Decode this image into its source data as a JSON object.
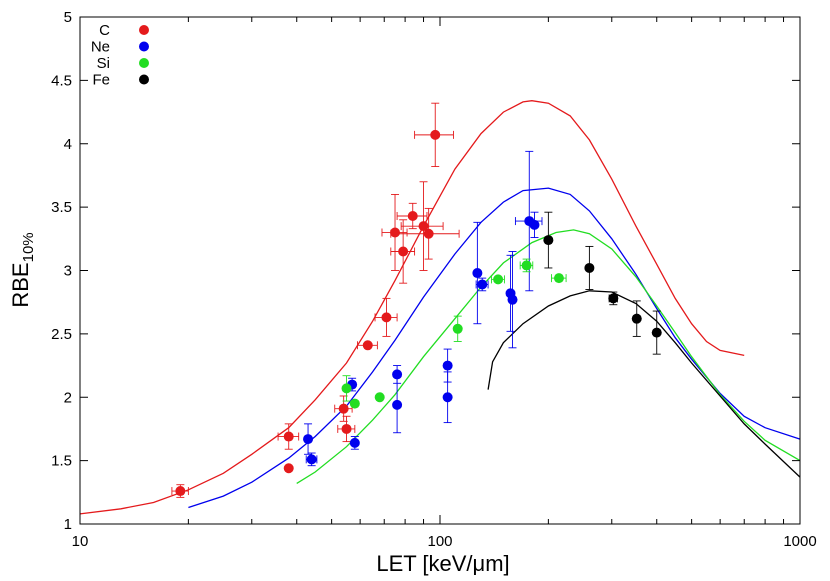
{
  "chart_data": {
    "type": "scatter",
    "title": "",
    "xlabel": "LET [keV/μm]",
    "ylabel_main": "RBE",
    "ylabel_sub": "10%",
    "x_scale": "log",
    "xlim": [
      10,
      1000
    ],
    "ylim": [
      1,
      5
    ],
    "x_ticks": [
      {
        "value": 10,
        "label": "10"
      },
      {
        "value": 100,
        "label": "100"
      },
      {
        "value": 1000,
        "label": "1000"
      }
    ],
    "y_ticks": [
      {
        "value": 1,
        "label": "1"
      },
      {
        "value": 1.5,
        "label": "1.5"
      },
      {
        "value": 2,
        "label": "2"
      },
      {
        "value": 2.5,
        "label": "2.5"
      },
      {
        "value": 3,
        "label": "3"
      },
      {
        "value": 3.5,
        "label": "3.5"
      },
      {
        "value": 4,
        "label": "4"
      },
      {
        "value": 4.5,
        "label": "4.5"
      },
      {
        "value": 5,
        "label": "5"
      }
    ],
    "grid": false,
    "legend_position": "top-left",
    "series": [
      {
        "name": "C",
        "color": "#e41a1c",
        "points": [
          {
            "x": 19,
            "y": 1.26,
            "xerr": 1.0,
            "yerr": 0.05
          },
          {
            "x": 38,
            "y": 1.69,
            "xerr": 2.5,
            "yerr": 0.1
          },
          {
            "x": 38,
            "y": 1.44,
            "xerr": 0,
            "yerr": 0
          },
          {
            "x": 54,
            "y": 1.91,
            "xerr": 3,
            "yerr": 0.1
          },
          {
            "x": 55,
            "y": 1.75,
            "xerr": 3,
            "yerr": 0.1
          },
          {
            "x": 63,
            "y": 2.41,
            "xerr": 4,
            "yerr": 0
          },
          {
            "x": 71,
            "y": 2.63,
            "xerr": 5,
            "yerr": 0.15
          },
          {
            "x": 75,
            "y": 3.3,
            "xerr": 6,
            "yerr": 0.3
          },
          {
            "x": 79,
            "y": 3.15,
            "xerr": 6,
            "yerr": 0.25
          },
          {
            "x": 84,
            "y": 3.43,
            "xerr": 8,
            "yerr": 0.1
          },
          {
            "x": 90,
            "y": 3.35,
            "xerr": 12,
            "yerr": 0.35
          },
          {
            "x": 93,
            "y": 3.29,
            "xerr": 20,
            "yerr": 0.2
          },
          {
            "x": 97,
            "y": 4.07,
            "xerr": 12,
            "yerr": 0.25
          }
        ]
      },
      {
        "name": "Ne",
        "color": "#0000ee",
        "points": [
          {
            "x": 43,
            "y": 1.67,
            "xerr": 0,
            "yerr": 0.12
          },
          {
            "x": 44,
            "y": 1.51,
            "xerr": 1.5,
            "yerr": 0.05
          },
          {
            "x": 57,
            "y": 2.1,
            "xerr": 0,
            "yerr": 0.05
          },
          {
            "x": 58,
            "y": 1.64,
            "xerr": 0,
            "yerr": 0.05
          },
          {
            "x": 76,
            "y": 2.18,
            "xerr": 0,
            "yerr": 0.07
          },
          {
            "x": 76,
            "y": 1.94,
            "xerr": 0,
            "yerr": 0.22
          },
          {
            "x": 105,
            "y": 2.25,
            "xerr": 0,
            "yerr": 0.13
          },
          {
            "x": 105,
            "y": 2.0,
            "xerr": 0,
            "yerr": 0.2
          },
          {
            "x": 127,
            "y": 2.98,
            "xerr": 0,
            "yerr": 0.4
          },
          {
            "x": 131,
            "y": 2.89,
            "xerr": 5,
            "yerr": 0.05
          },
          {
            "x": 157,
            "y": 2.82,
            "xerr": 0,
            "yerr": 0.3
          },
          {
            "x": 159,
            "y": 2.77,
            "xerr": 0,
            "yerr": 0.38
          },
          {
            "x": 177,
            "y": 3.39,
            "xerr": 15,
            "yerr": 0.55
          },
          {
            "x": 183,
            "y": 3.36,
            "xerr": 0,
            "yerr": 0.1
          }
        ]
      },
      {
        "name": "Si",
        "color": "#22dd22",
        "points": [
          {
            "x": 55,
            "y": 2.07,
            "xerr": 0,
            "yerr": 0.1
          },
          {
            "x": 58,
            "y": 1.95,
            "xerr": 0,
            "yerr": 0
          },
          {
            "x": 68,
            "y": 2.0,
            "xerr": 0,
            "yerr": 0
          },
          {
            "x": 112,
            "y": 2.54,
            "xerr": 0,
            "yerr": 0.1
          },
          {
            "x": 145,
            "y": 2.93,
            "xerr": 6,
            "yerr": 0
          },
          {
            "x": 174,
            "y": 3.04,
            "xerr": 7,
            "yerr": 0.05
          },
          {
            "x": 214,
            "y": 2.94,
            "xerr": 10,
            "yerr": 0
          }
        ]
      },
      {
        "name": "Fe",
        "color": "#000000",
        "points": [
          {
            "x": 200,
            "y": 3.24,
            "xerr": 0,
            "yerr": 0.22
          },
          {
            "x": 260,
            "y": 3.02,
            "xerr": 0,
            "yerr": 0.17
          },
          {
            "x": 303,
            "y": 2.78,
            "xerr": 8,
            "yerr": 0.05
          },
          {
            "x": 352,
            "y": 2.62,
            "xerr": 0,
            "yerr": 0.14
          },
          {
            "x": 400,
            "y": 2.51,
            "xerr": 0,
            "yerr": 0.17
          }
        ]
      }
    ],
    "curves": [
      {
        "color": "#e41a1c",
        "points": [
          [
            10,
            1.08
          ],
          [
            13,
            1.12
          ],
          [
            16,
            1.17
          ],
          [
            20,
            1.27
          ],
          [
            25,
            1.4
          ],
          [
            30,
            1.55
          ],
          [
            38,
            1.76
          ],
          [
            45,
            1.98
          ],
          [
            55,
            2.27
          ],
          [
            65,
            2.6
          ],
          [
            75,
            2.92
          ],
          [
            90,
            3.35
          ],
          [
            110,
            3.8
          ],
          [
            130,
            4.08
          ],
          [
            150,
            4.25
          ],
          [
            170,
            4.33
          ],
          [
            180,
            4.34
          ],
          [
            200,
            4.32
          ],
          [
            230,
            4.22
          ],
          [
            260,
            4.03
          ],
          [
            300,
            3.72
          ],
          [
            350,
            3.35
          ],
          [
            400,
            3.05
          ],
          [
            450,
            2.78
          ],
          [
            500,
            2.58
          ],
          [
            550,
            2.44
          ],
          [
            600,
            2.37
          ],
          [
            700,
            2.33
          ]
        ]
      },
      {
        "color": "#0000ee",
        "points": [
          [
            20,
            1.13
          ],
          [
            25,
            1.22
          ],
          [
            30,
            1.33
          ],
          [
            38,
            1.52
          ],
          [
            45,
            1.69
          ],
          [
            55,
            1.93
          ],
          [
            65,
            2.2
          ],
          [
            75,
            2.45
          ],
          [
            90,
            2.79
          ],
          [
            110,
            3.13
          ],
          [
            130,
            3.38
          ],
          [
            150,
            3.54
          ],
          [
            170,
            3.63
          ],
          [
            200,
            3.65
          ],
          [
            230,
            3.6
          ],
          [
            260,
            3.47
          ],
          [
            300,
            3.25
          ],
          [
            350,
            2.97
          ],
          [
            400,
            2.7
          ],
          [
            450,
            2.47
          ],
          [
            500,
            2.3
          ],
          [
            600,
            2.03
          ],
          [
            700,
            1.85
          ],
          [
            800,
            1.76
          ],
          [
            1000,
            1.67
          ]
        ]
      },
      {
        "color": "#22dd22",
        "points": [
          [
            40,
            1.32
          ],
          [
            45,
            1.41
          ],
          [
            55,
            1.61
          ],
          [
            65,
            1.82
          ],
          [
            75,
            2.02
          ],
          [
            90,
            2.32
          ],
          [
            110,
            2.62
          ],
          [
            130,
            2.87
          ],
          [
            150,
            3.06
          ],
          [
            180,
            3.22
          ],
          [
            210,
            3.3
          ],
          [
            235,
            3.32
          ],
          [
            260,
            3.29
          ],
          [
            300,
            3.17
          ],
          [
            350,
            2.95
          ],
          [
            400,
            2.72
          ],
          [
            450,
            2.51
          ],
          [
            500,
            2.32
          ],
          [
            600,
            2.02
          ],
          [
            700,
            1.81
          ],
          [
            800,
            1.66
          ],
          [
            1000,
            1.5
          ]
        ]
      },
      {
        "color": "#000000",
        "points": [
          [
            136,
            2.06
          ],
          [
            140,
            2.28
          ],
          [
            150,
            2.43
          ],
          [
            170,
            2.58
          ],
          [
            200,
            2.72
          ],
          [
            230,
            2.8
          ],
          [
            260,
            2.84
          ],
          [
            300,
            2.83
          ],
          [
            350,
            2.74
          ],
          [
            400,
            2.6
          ],
          [
            450,
            2.43
          ],
          [
            500,
            2.27
          ],
          [
            600,
            2.01
          ],
          [
            700,
            1.79
          ],
          [
            800,
            1.63
          ],
          [
            1000,
            1.37
          ]
        ]
      }
    ]
  }
}
